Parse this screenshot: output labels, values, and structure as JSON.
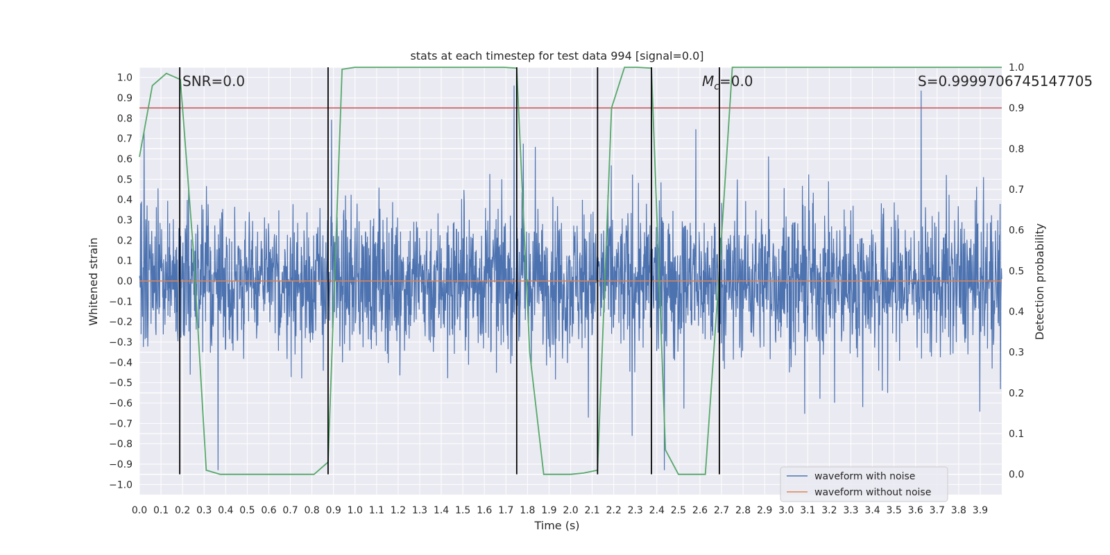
{
  "chart_data": {
    "type": "line",
    "title": "stats at each timestep for test data 994 [signal=0.0]",
    "xlabel": "Time (s)",
    "ylabel": "Whitened strain",
    "y2label": "Detection probability",
    "xlim": [
      0.0,
      4.0
    ],
    "ylim": [
      -1.05,
      1.05
    ],
    "y2lim": [
      -0.05,
      1.0
    ],
    "grid": true,
    "x_ticks": [
      "0.0",
      "0.1",
      "0.2",
      "0.3",
      "0.4",
      "0.5",
      "0.6",
      "0.7",
      "0.8",
      "0.9",
      "1.0",
      "1.1",
      "1.2",
      "1.3",
      "1.4",
      "1.5",
      "1.6",
      "1.7",
      "1.8",
      "1.9",
      "2.0",
      "2.1",
      "2.2",
      "2.3",
      "2.4",
      "2.5",
      "2.6",
      "2.7",
      "2.8",
      "2.9",
      "3.0",
      "3.1",
      "3.2",
      "3.3",
      "3.4",
      "3.5",
      "3.6",
      "3.7",
      "3.8",
      "3.9"
    ],
    "y_ticks": [
      "1.0",
      "0.9",
      "0.8",
      "0.7",
      "0.6",
      "0.5",
      "0.4",
      "0.3",
      "0.2",
      "0.1",
      "0.0",
      "-0.1",
      "-0.2",
      "-0.3",
      "-0.4",
      "-0.5",
      "-0.6",
      "-0.7",
      "-0.8",
      "-0.9",
      "-1.0"
    ],
    "y2_ticks": [
      "1.0",
      "0.9",
      "0.8",
      "0.7",
      "0.6",
      "0.5",
      "0.4",
      "0.3",
      "0.2",
      "0.1",
      "0.0"
    ],
    "annotations": {
      "snr": "SNR=0.0",
      "mc_symbol": "M",
      "mc_sub": "c",
      "mc_value": "=0.0",
      "s_text": "S=0.9999706745147705"
    },
    "series": [
      {
        "name": "waveform with noise",
        "color": "#4c72b0",
        "noise_amplitude_typical": 0.28,
        "peak_max": 0.96,
        "peak_min": -0.93
      },
      {
        "name": "waveform without noise",
        "color": "#dd8452",
        "value": 0.0
      },
      {
        "name": "detection probability",
        "color": "#55a868",
        "axis": "right",
        "x": [
          0.0,
          0.06,
          0.125,
          0.19,
          0.25,
          0.31,
          0.375,
          0.44,
          0.5,
          0.56,
          0.625,
          0.69,
          0.75,
          0.81,
          0.875,
          0.94,
          1.0,
          1.06,
          1.125,
          1.19,
          1.25,
          1.31,
          1.375,
          1.44,
          1.5,
          1.56,
          1.625,
          1.69,
          1.75,
          1.81,
          1.875,
          1.94,
          2.0,
          2.06,
          2.125,
          2.19,
          2.25,
          2.31,
          2.375,
          2.44,
          2.5,
          2.56,
          2.625,
          2.69,
          2.75,
          2.81,
          2.875,
          2.94,
          3.0,
          3.5,
          4.0
        ],
        "values": [
          0.78,
          0.955,
          0.985,
          0.97,
          0.55,
          0.01,
          0.0,
          0.0,
          0.0,
          0.0,
          0.0,
          0.0,
          0.0,
          0.0,
          0.03,
          0.995,
          1.0,
          1.0,
          1.0,
          1.0,
          1.0,
          1.0,
          1.0,
          1.0,
          1.0,
          1.0,
          1.0,
          1.0,
          0.998,
          0.3,
          0.0,
          0.0,
          0.0,
          0.003,
          0.01,
          0.9,
          1.0,
          1.0,
          0.998,
          0.06,
          0.0,
          0.0,
          0.0,
          0.5,
          1.0,
          1.0,
          1.0,
          1.0,
          1.0,
          1.0,
          1.0
        ]
      }
    ],
    "hlines": [
      {
        "y2": 0.9,
        "color": "#c44e52"
      }
    ],
    "vlines_x": [
      0.187,
      0.875,
      1.75,
      2.125,
      2.375,
      2.69
    ],
    "vline_y2_range": [
      0.0,
      1.0
    ],
    "legend": {
      "location": "lower right",
      "entries": [
        "waveform with noise",
        "waveform without noise"
      ]
    }
  }
}
